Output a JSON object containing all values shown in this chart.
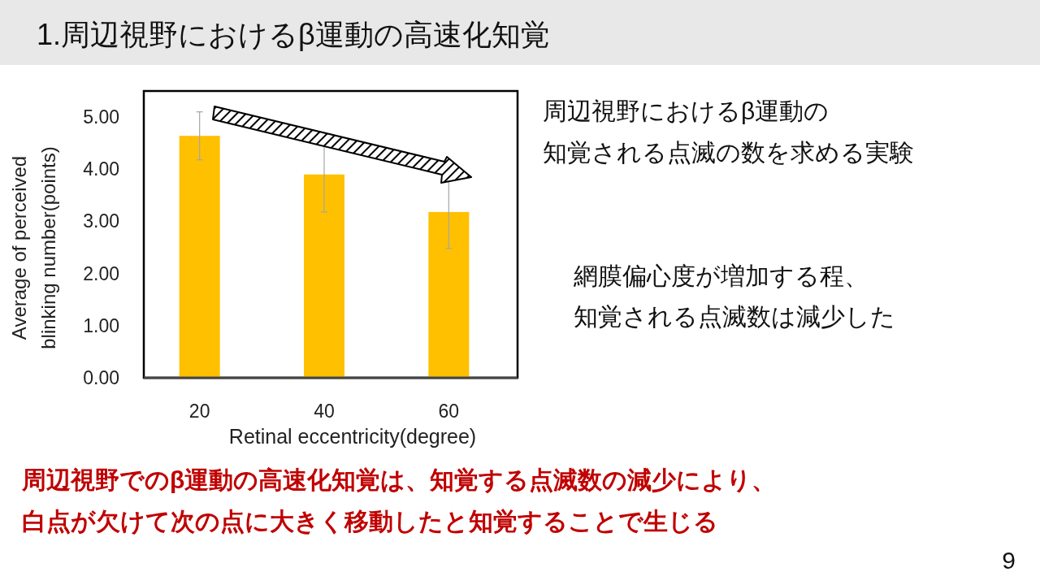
{
  "chart_data": {
    "type": "bar",
    "title": "1.周辺視野におけるβ運動の高速化知覚",
    "xlabel": "Retinal eccentricity(degree)",
    "ylabel": "Average of perceived blinking number(points)",
    "categories": [
      "20",
      "40",
      "60"
    ],
    "values": [
      4.64,
      3.9,
      3.18
    ],
    "errors": [
      0.46,
      0.72,
      0.7
    ],
    "color": "#ffc000",
    "ylim": [
      0,
      5.5
    ],
    "yticks": [
      {
        "value": 0,
        "label": "0.00"
      },
      {
        "value": 1,
        "label": "1.00"
      },
      {
        "value": 2,
        "label": "2.00"
      },
      {
        "value": 3,
        "label": "3.00"
      },
      {
        "value": 4,
        "label": "4.00"
      },
      {
        "value": 5,
        "label": "5.00"
      }
    ],
    "annotations": [
      "周辺視野におけるβ運動の",
      "知覚される点滅の数を求める実験",
      "網膜偏心度が増加する程、",
      "知覚される点滅数は減少した",
      "周辺視野でのβ運動の高速化知覚は、知覚する点滅数の減少により、",
      "白点が欠けて次の点に大きく移動したと知覚することで生じる",
      "9"
    ]
  }
}
